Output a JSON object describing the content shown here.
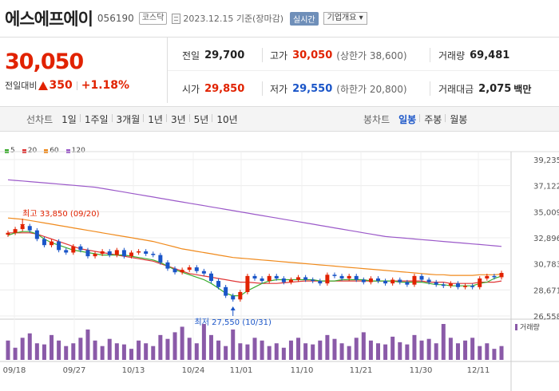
{
  "header": {
    "name": "에스에프에이",
    "code": "056190",
    "market": "코스닥",
    "date": "2023.12.15 기준(장마감)",
    "realtime_label": "실시간",
    "corp_info_label": "기업개요 ▾"
  },
  "quote": {
    "price": "30,050",
    "change_label": "전일대비",
    "change": "350",
    "change_pct": "+1.18%",
    "prev_close": {
      "label": "전일",
      "value": "29,700"
    },
    "high": {
      "label": "고가",
      "value": "30,050",
      "sub": "(상한가 38,600)"
    },
    "volume": {
      "label": "거래량",
      "value": "69,481"
    },
    "open": {
      "label": "시가",
      "value": "29,850"
    },
    "low": {
      "label": "저가",
      "value": "29,550",
      "sub": "(하한가 20,800)"
    },
    "amount": {
      "label": "거래대금",
      "value": "2,075",
      "unit": "백만"
    }
  },
  "toolbar": {
    "line_label": "선차트",
    "line_periods": [
      "1일",
      "1주일",
      "3개월",
      "1년",
      "3년",
      "5년",
      "10년"
    ],
    "candle_label": "봉차트",
    "candle_periods": [
      "일봉",
      "주봉",
      "월봉"
    ],
    "active_candle": "일봉"
  },
  "chart_data": {
    "type": "candlestick",
    "legend": [
      {
        "name": "5",
        "color": "#3cad2e"
      },
      {
        "name": "20",
        "color": "#e03636"
      },
      {
        "name": "60",
        "color": "#f08a1c"
      },
      {
        "name": "120",
        "color": "#9b59c9"
      }
    ],
    "y_ticks": [
      "39,235",
      "37,122",
      "35,009",
      "32,896",
      "30,783",
      "28,671",
      "26,558"
    ],
    "ylim": [
      26558,
      39235
    ],
    "x_ticks": [
      "09/18",
      "09/27",
      "10/13",
      "10/24",
      "11/01",
      "11/10",
      "11/21",
      "11/30",
      "12/11"
    ],
    "annotations": {
      "high": "최고 33,850 (09/20)",
      "low": "최저 27,550 (10/31)"
    },
    "volume_label": "거래량",
    "closes": [
      33300,
      33600,
      33850,
      33500,
      32800,
      32300,
      32600,
      31900,
      31700,
      32200,
      31900,
      31400,
      31600,
      31800,
      31500,
      31900,
      31400,
      31700,
      31800,
      31600,
      31500,
      30900,
      30400,
      30100,
      30300,
      30500,
      30200,
      30000,
      29400,
      28900,
      28200,
      27900,
      28500,
      29800,
      29600,
      29400,
      29800,
      29600,
      29300,
      29500,
      29700,
      29500,
      29400,
      29200,
      29900,
      29800,
      29600,
      29800,
      29500,
      29300,
      29600,
      29400,
      29200,
      29500,
      29300,
      29100,
      29800,
      29500,
      29300,
      29100,
      29000,
      29200,
      28900,
      29000,
      28900,
      29600,
      29800,
      29700,
      30050
    ],
    "ma5": [
      33100,
      33300,
      33400,
      33400,
      33200,
      32800,
      32500,
      32300,
      32100,
      31900,
      31800,
      31700,
      31600,
      31500,
      31500,
      31500,
      31500,
      31400,
      31300,
      31200,
      31100,
      30900,
      30600,
      30300,
      30100,
      29900,
      29700,
      29500,
      29200,
      28800,
      28400,
      28200,
      28200,
      28600,
      28900,
      29200,
      29400,
      29500,
      29500,
      29500,
      29500,
      29500,
      29500,
      29400,
      29400,
      29400,
      29500,
      29500,
      29500,
      29500,
      29400,
      29400,
      29400,
      29400,
      29300,
      29300,
      29300,
      29300,
      29200,
      29100,
      29100,
      29000,
      29000,
      29000,
      29000,
      29200,
      29300,
      29600,
      29800
    ],
    "ma20": [
      33300,
      33300,
      33300,
      33300,
      33200,
      33000,
      32800,
      32600,
      32400,
      32200,
      32000,
      31900,
      31800,
      31700,
      31600,
      31500,
      31400,
      31300,
      31200,
      31100,
      31000,
      30800,
      30600,
      30400,
      30200,
      30000,
      29900,
      29800,
      29700,
      29600,
      29500,
      29400,
      29300,
      29300,
      29250,
      29200,
      29200,
      29200,
      29250,
      29300,
      29350,
      29400,
      29400,
      29400,
      29400,
      29400,
      29400,
      29400,
      29400,
      29400,
      29400,
      29400,
      29400,
      29400,
      29400,
      29400,
      29400,
      29400,
      29300,
      29300,
      29300,
      29200,
      29200,
      29200,
      29200,
      29300,
      29300,
      29300,
      29400
    ],
    "ma60": [
      34500,
      34450,
      34400,
      34300,
      34200,
      34100,
      34000,
      33900,
      33800,
      33700,
      33600,
      33500,
      33400,
      33300,
      33200,
      33100,
      33000,
      32900,
      32800,
      32700,
      32600,
      32450,
      32300,
      32150,
      32000,
      31900,
      31800,
      31700,
      31600,
      31500,
      31400,
      31300,
      31250,
      31200,
      31150,
      31100,
      31050,
      31000,
      30950,
      30900,
      30850,
      30800,
      30750,
      30700,
      30650,
      30600,
      30550,
      30500,
      30450,
      30400,
      30350,
      30300,
      30250,
      30200,
      30150,
      30100,
      30050,
      30000,
      29950,
      29900,
      29900,
      29850,
      29850,
      29850,
      29850,
      29900,
      29900,
      29900,
      29950
    ],
    "ma120": [
      37600,
      37550,
      37500,
      37450,
      37400,
      37350,
      37300,
      37250,
      37200,
      37150,
      37100,
      37050,
      37000,
      36900,
      36800,
      36700,
      36600,
      36500,
      36400,
      36300,
      36200,
      36100,
      36000,
      35900,
      35800,
      35700,
      35600,
      35500,
      35400,
      35300,
      35200,
      35100,
      35000,
      34900,
      34800,
      34700,
      34600,
      34500,
      34400,
      34300,
      34200,
      34100,
      34000,
      33900,
      33800,
      33700,
      33600,
      33500,
      33400,
      33300,
      33200,
      33100,
      33000,
      32950,
      32900,
      32850,
      32800,
      32750,
      32700,
      32650,
      32600,
      32550,
      32500,
      32450,
      32400,
      32350,
      32300,
      32250,
      32200
    ],
    "volumes": [
      35,
      22,
      40,
      48,
      30,
      28,
      45,
      35,
      25,
      30,
      40,
      55,
      35,
      25,
      38,
      30,
      28,
      20,
      35,
      30,
      25,
      45,
      38,
      50,
      60,
      40,
      30,
      65,
      45,
      35,
      25,
      55,
      30,
      28,
      40,
      35,
      25,
      30,
      22,
      35,
      40,
      30,
      28,
      35,
      45,
      38,
      30,
      25,
      40,
      50,
      35,
      30,
      28,
      42,
      32,
      28,
      45,
      35,
      38,
      30,
      65,
      40,
      30,
      35,
      40,
      25,
      30,
      20,
      25
    ]
  }
}
